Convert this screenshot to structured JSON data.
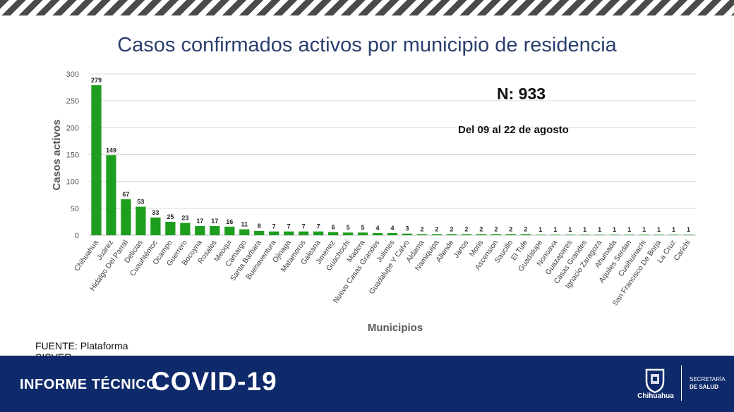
{
  "title": "Casos confirmados activos por municipio de residencia",
  "annotations": {
    "n_label": "N: 933",
    "date_range": "Del 09 al 22 de agosto"
  },
  "source": "FUENTE: Plataforma SISVER",
  "footer": {
    "informe": "INFORME TÉCNICO",
    "covid": "COVID-19",
    "logo_text": "Chihuahua",
    "secretaria_line1": "SECRETARÍA",
    "secretaria_line2": "DE SALUD"
  },
  "colors": {
    "bar": "#1e9e1e",
    "title": "#2a3f6e",
    "footer_bg": "#0f2a6b"
  },
  "chart_data": {
    "type": "bar",
    "title": "Casos confirmados activos por municipio de residencia",
    "xlabel": "Municipios",
    "ylabel": "Casos activos",
    "ylim": [
      0,
      300
    ],
    "yticks": [
      0,
      50,
      100,
      150,
      200,
      250,
      300
    ],
    "grid": true,
    "categories": [
      "Chihuahua",
      "Juárez",
      "Hidalgo Del Parral",
      "Delicias",
      "Cuauhtémoc",
      "Ocampo",
      "Guerrero",
      "Bocoyna",
      "Rosales",
      "Meoqui",
      "Camargo",
      "Santa Barbara",
      "Buenaventura",
      "Ojinaga",
      "Matamoros",
      "Galeana",
      "Jimenez",
      "Guachochi",
      "Madera",
      "Nuevo Casas Grandes",
      "Julimes",
      "Guadalupe Y Calvo",
      "Aldama",
      "Namiquipa",
      "Allende",
      "Janos",
      "Moris",
      "Ascension",
      "Saucillo",
      "El Tule",
      "Guadalupe",
      "Nonoava",
      "Guazapares",
      "Casas Grandes",
      "Ignacio Zaragoza",
      "Ahumada",
      "Aquiles Serdan",
      "Cusihuiriachi",
      "San Francisco De Borja",
      "La Cruz",
      "Carichi"
    ],
    "values": [
      279,
      149,
      67,
      53,
      33,
      25,
      23,
      17,
      17,
      16,
      11,
      8,
      7,
      7,
      7,
      7,
      6,
      5,
      5,
      4,
      4,
      3,
      2,
      2,
      2,
      2,
      2,
      2,
      2,
      2,
      1,
      1,
      1,
      1,
      1,
      1,
      1,
      1,
      1,
      1,
      1
    ]
  }
}
